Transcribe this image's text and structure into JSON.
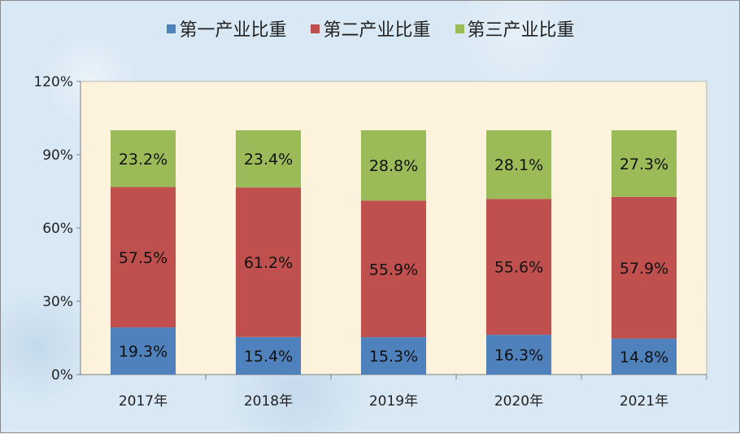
{
  "chart_data": {
    "type": "bar",
    "stacked": true,
    "categories": [
      "2017年",
      "2018年",
      "2019年",
      "2020年",
      "2021年"
    ],
    "series": [
      {
        "name": "第一产业比重",
        "color": "#4f81bd",
        "values": [
          19.3,
          15.4,
          15.3,
          16.3,
          14.8
        ],
        "labels": [
          "19.3%",
          "15.4%",
          "15.3%",
          "16.3%",
          "14.8%"
        ]
      },
      {
        "name": "第二产业比重",
        "color": "#c0504d",
        "values": [
          57.5,
          61.2,
          55.9,
          55.6,
          57.9
        ],
        "labels": [
          "57.5%",
          "61.2%",
          "55.9%",
          "55.6%",
          "57.9%"
        ]
      },
      {
        "name": "第三产业比重",
        "color": "#9bbb59",
        "values": [
          23.2,
          23.4,
          28.8,
          28.1,
          27.3
        ],
        "labels": [
          "23.2%",
          "23.4%",
          "28.8%",
          "28.1%",
          "27.3%"
        ]
      }
    ],
    "ylim": [
      0,
      120
    ],
    "yticks": [
      0,
      30,
      60,
      90,
      120
    ],
    "ytick_labels": [
      "0%",
      "30%",
      "60%",
      "90%",
      "120%"
    ],
    "legend_position": "top",
    "plot_background": "#fdf3dc",
    "grid": false
  }
}
